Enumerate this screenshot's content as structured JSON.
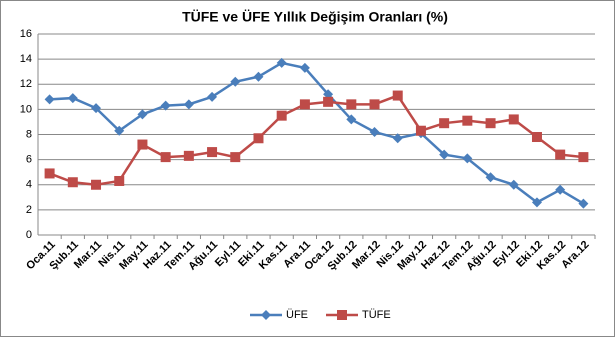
{
  "chart_data": {
    "type": "line",
    "title": "TÜFE ve ÜFE Yıllık Değişim Oranları (%)",
    "categories": [
      "Oca.11",
      "Şub.11",
      "Mar.11",
      "Nis.11",
      "May.11",
      "Haz.11",
      "Tem.11",
      "Ağu.11",
      "Eyl.11",
      "Eki.11",
      "Kas.11",
      "Ara.11",
      "Oca.12",
      "Şub.12",
      "Mar.12",
      "Nis.12",
      "May.12",
      "Haz.12",
      "Tem.12",
      "Ağu.12",
      "Eyl.12",
      "Eki.12",
      "Kas.12",
      "Ara.12"
    ],
    "series": [
      {
        "name": "ÜFE",
        "color": "#4a7ebb",
        "marker": "diamond",
        "values": [
          10.8,
          10.9,
          10.1,
          8.3,
          9.6,
          10.3,
          10.4,
          11.0,
          12.2,
          12.6,
          13.7,
          13.3,
          11.2,
          9.2,
          8.2,
          7.7,
          8.1,
          6.4,
          6.1,
          4.6,
          4.0,
          2.6,
          3.6,
          2.5
        ]
      },
      {
        "name": "TÜFE",
        "color": "#be4b48",
        "marker": "square",
        "values": [
          4.9,
          4.2,
          4.0,
          4.3,
          7.2,
          6.2,
          6.3,
          6.6,
          6.2,
          7.7,
          9.5,
          10.4,
          10.6,
          10.4,
          10.4,
          11.1,
          8.3,
          8.9,
          9.1,
          8.9,
          9.2,
          7.8,
          6.4,
          6.2
        ]
      }
    ],
    "ylim": [
      0,
      16
    ],
    "yticks": [
      0,
      2,
      4,
      6,
      8,
      10,
      12,
      14,
      16
    ],
    "grid": true,
    "legend": "bottom"
  }
}
